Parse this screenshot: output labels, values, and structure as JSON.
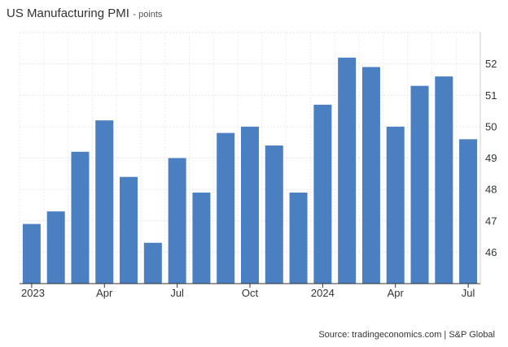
{
  "chart_data": {
    "type": "bar",
    "title": "US Manufacturing PMI",
    "subtitle": "- points",
    "x_tick_labels": [
      "2023",
      "Apr",
      "Jul",
      "Oct",
      "2024",
      "Apr",
      "Jul"
    ],
    "categories": [
      "Jan 2023",
      "Feb 2023",
      "Mar 2023",
      "Apr 2023",
      "May 2023",
      "Jun 2023",
      "Jul 2023",
      "Aug 2023",
      "Sep 2023",
      "Oct 2023",
      "Nov 2023",
      "Dec 2023",
      "Jan 2024",
      "Feb 2024",
      "Mar 2024",
      "Apr 2024",
      "May 2024",
      "Jun 2024",
      "Jul 2024"
    ],
    "values": [
      46.9,
      47.3,
      49.2,
      50.2,
      48.4,
      46.3,
      49.0,
      47.9,
      49.8,
      50.0,
      49.4,
      47.9,
      50.7,
      52.2,
      51.9,
      50.0,
      51.3,
      51.6,
      49.6
    ],
    "y_ticks": [
      46,
      47,
      48,
      49,
      50,
      51,
      52
    ],
    "ylim": [
      45,
      53
    ],
    "grid": true,
    "colors": {
      "bar": "#4a80c1"
    },
    "source": "Source: tradingeconomics.com | S&P Global"
  }
}
